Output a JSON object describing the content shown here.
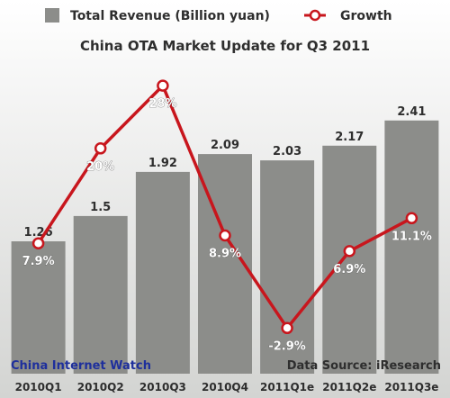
{
  "chart_data": {
    "type": "bar",
    "title": "China OTA Market Update for Q3 2011",
    "categories": [
      "2010Q1",
      "2010Q2",
      "2010Q3",
      "2010Q4",
      "2011Q1e",
      "2011Q2e",
      "2011Q3e"
    ],
    "series": [
      {
        "name": "Total Revenue (Billion yuan)",
        "type": "bar",
        "values": [
          1.26,
          1.5,
          1.92,
          2.09,
          2.03,
          2.17,
          2.41
        ],
        "labels": [
          "1.26",
          "1.5",
          "1.92",
          "2.09",
          "2.03",
          "2.17",
          "2.41"
        ],
        "color": "#8c8d8a"
      },
      {
        "name": "Growth",
        "type": "line",
        "values": [
          7.9,
          20,
          28,
          8.9,
          -2.9,
          6.9,
          11.1
        ],
        "labels": [
          "7.9%",
          "20%",
          "28%",
          "8.9%",
          "-2.9%",
          "6.9%",
          "11.1%"
        ],
        "color": "#c8161d"
      }
    ],
    "legend_position": "top",
    "grid": false,
    "source_note": "Data Source: iResearch",
    "watermark": "China Internet Watch"
  },
  "colors": {
    "background_top": "#ffffff",
    "background_bottom": "#d3d4d2",
    "bar": "#8c8d8a",
    "line": "#c8161d",
    "text_dark": "#2e2e2e",
    "watermark": "#1e2f9c"
  }
}
